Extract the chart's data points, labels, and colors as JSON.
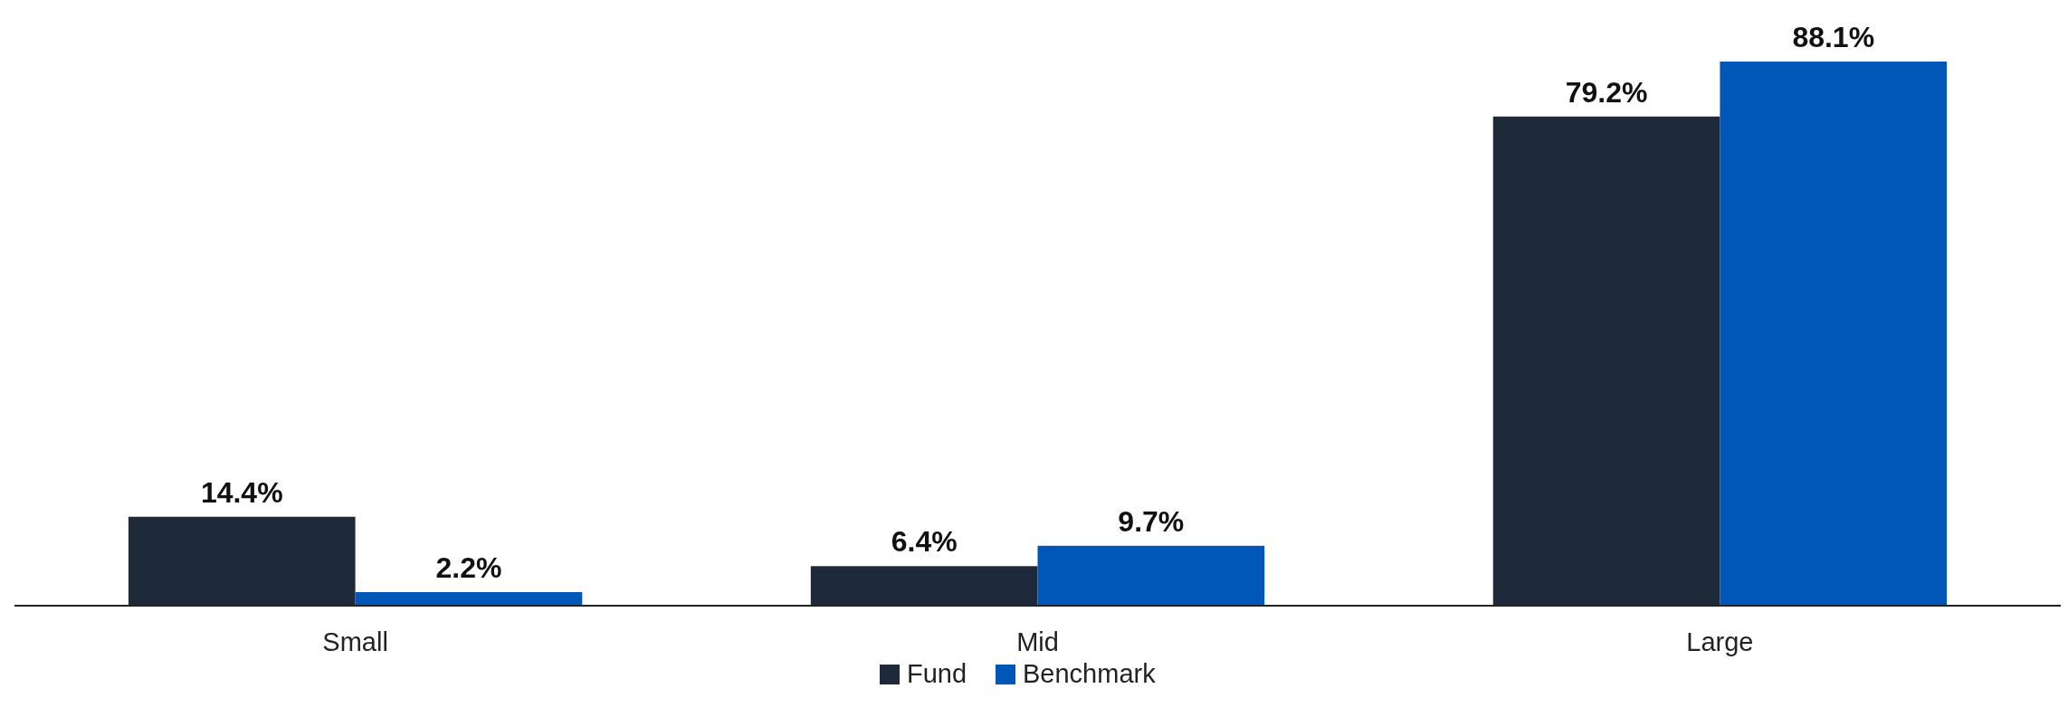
{
  "chart_data": {
    "type": "bar",
    "categories": [
      "Small",
      "Mid",
      "Large"
    ],
    "series": [
      {
        "name": "Fund",
        "color": "#1e2a3a",
        "values": [
          14.4,
          6.4,
          79.2
        ],
        "value_labels": [
          "14.4%",
          "6.4%",
          "79.2%"
        ]
      },
      {
        "name": "Benchmark",
        "color": "#0057b8",
        "values": [
          2.2,
          9.7,
          88.1
        ],
        "value_labels": [
          "2.2%",
          "9.7%",
          "88.1%"
        ]
      }
    ],
    "legend": "bottom"
  }
}
